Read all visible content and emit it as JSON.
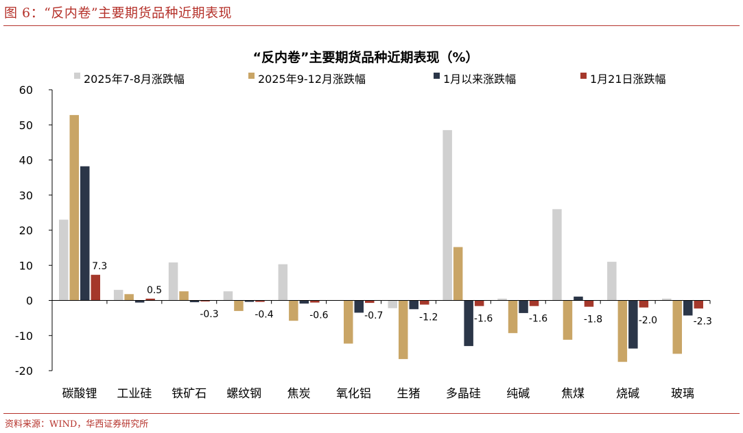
{
  "figure": {
    "title": "图 6：“反内卷”主要期货品种近期表现",
    "source": "资料来源：WIND，华西证券研究所"
  },
  "chart_data": {
    "type": "bar",
    "title": "“反内卷”主要期货品种近期表现（%）",
    "categories": [
      "碳酸锂",
      "工业硅",
      "铁矿石",
      "螺纹钢",
      "焦炭",
      "氧化铝",
      "生猪",
      "多晶硅",
      "纯碱",
      "焦煤",
      "烧碱",
      "玻璃"
    ],
    "series": [
      {
        "name": "2025年7-8月涨跌幅",
        "color": "#d0d0d0",
        "values": [
          23,
          3,
          10.8,
          2.6,
          10.3,
          0,
          -2.2,
          48.5,
          0.5,
          26,
          11,
          0.5
        ]
      },
      {
        "name": "2025年9-12月涨跌幅",
        "color": "#c9a566",
        "values": [
          52.8,
          1.8,
          2.6,
          -3,
          -5.8,
          -12.3,
          -16.7,
          15.2,
          -9.3,
          -11.2,
          -17.5,
          -15.2
        ]
      },
      {
        "name": "1月以来涨跌幅",
        "color": "#2b3648",
        "values": [
          38.2,
          -0.6,
          -0.5,
          -0.4,
          -0.9,
          -3.5,
          -2.5,
          -13,
          -3.6,
          1.1,
          -13.7,
          -4.3
        ]
      },
      {
        "name": "1月21日涨跌幅",
        "color": "#a5382b",
        "values": [
          7.3,
          0.5,
          -0.3,
          -0.4,
          -0.6,
          -0.7,
          -1.2,
          -1.6,
          -1.6,
          -1.8,
          -2.0,
          -2.3
        ]
      }
    ],
    "data_labels": [
      "7.3",
      "0.5",
      "-0.3",
      "-0.4",
      "-0.6",
      "-0.7",
      "-1.2",
      "-1.6",
      "-1.6",
      "-1.8",
      "-2.0",
      "-2.3"
    ],
    "ylim": [
      -20,
      60
    ],
    "yticks": [
      "60",
      "50",
      "40",
      "30",
      "20",
      "10",
      "0",
      "-10",
      "-20"
    ],
    "legend_position": "top",
    "grid": false
  }
}
